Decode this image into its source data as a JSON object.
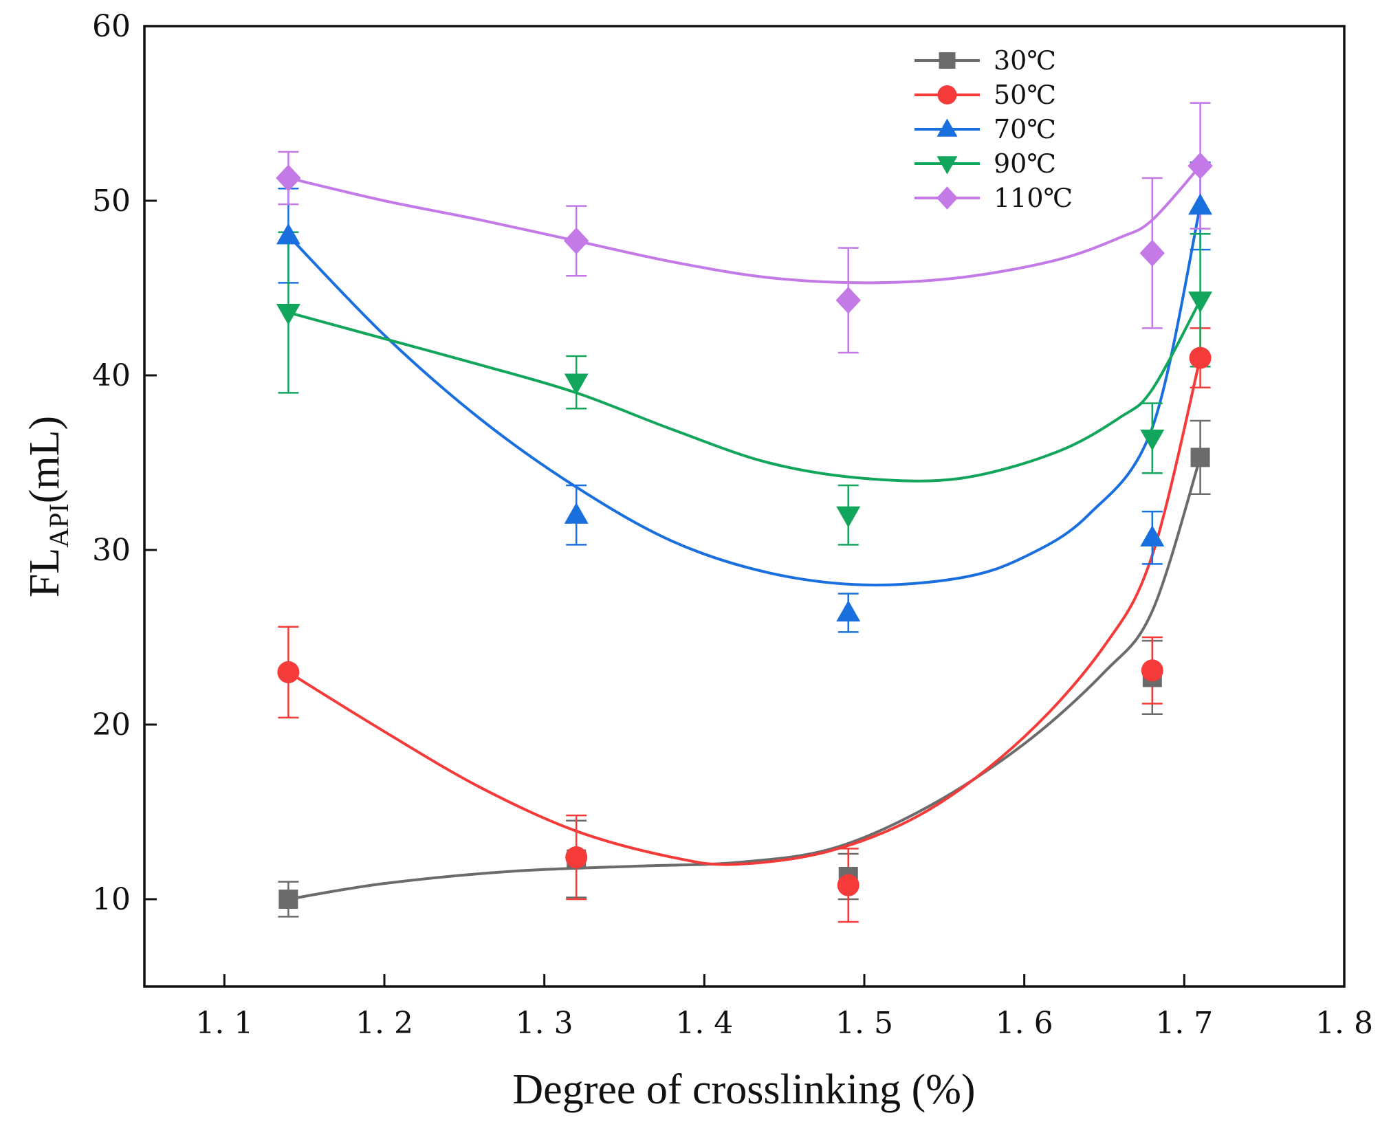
{
  "chart_data": {
    "type": "line",
    "xlabel": "Degree of crosslinking (%)",
    "ylabel_main": "FL",
    "ylabel_sub": "API",
    "ylabel_unit": "(mL)",
    "xlim": [
      1.05,
      1.8
    ],
    "ylim": [
      5,
      60
    ],
    "x_ticks": [
      1.1,
      1.2,
      1.3,
      1.4,
      1.5,
      1.6,
      1.7,
      1.8
    ],
    "x_tick_labels": [
      "1. 1",
      "1. 2",
      "1. 3",
      "1. 4",
      "1. 5",
      "1. 6",
      "1. 7",
      "1. 8"
    ],
    "y_ticks": [
      10,
      20,
      30,
      40,
      50,
      60
    ],
    "y_tick_labels": [
      "10",
      "20",
      "30",
      "40",
      "50",
      "60"
    ],
    "legend_position": "top-right",
    "grid": false,
    "x": [
      1.14,
      1.32,
      1.49,
      1.68,
      1.71
    ],
    "series": [
      {
        "name": "30℃",
        "color": "#6b6b6b",
        "marker": "square",
        "values": [
          10.0,
          12.3,
          11.3,
          22.7,
          35.3
        ],
        "errors": [
          1.0,
          2.2,
          1.3,
          2.1,
          2.1
        ],
        "fit_x": [
          1.14,
          1.2,
          1.28,
          1.36,
          1.42,
          1.48,
          1.54,
          1.6,
          1.65,
          1.68,
          1.71
        ],
        "fit_y": [
          10.0,
          10.9,
          11.6,
          11.9,
          12.1,
          12.9,
          15.3,
          18.9,
          23.0,
          26.5,
          35.3
        ]
      },
      {
        "name": "50℃",
        "color": "#f53a3a",
        "marker": "circle",
        "values": [
          23.0,
          12.4,
          10.8,
          23.1,
          41.0
        ],
        "errors": [
          2.6,
          2.4,
          2.1,
          1.9,
          1.7
        ],
        "fit_x": [
          1.14,
          1.2,
          1.26,
          1.32,
          1.38,
          1.42,
          1.48,
          1.54,
          1.6,
          1.65,
          1.68,
          1.71
        ],
        "fit_y": [
          23.0,
          19.6,
          16.4,
          13.9,
          12.4,
          12.0,
          12.8,
          15.1,
          19.3,
          24.5,
          29.7,
          41.0
        ]
      },
      {
        "name": "70℃",
        "color": "#1a6fdf",
        "marker": "triangle-up",
        "values": [
          48.0,
          32.0,
          26.4,
          30.7,
          49.7
        ],
        "errors": [
          2.7,
          1.7,
          1.1,
          1.5,
          2.5
        ],
        "fit_x": [
          1.14,
          1.2,
          1.26,
          1.32,
          1.38,
          1.44,
          1.5,
          1.56,
          1.6,
          1.64,
          1.68,
          1.71
        ],
        "fit_y": [
          48.0,
          42.3,
          37.5,
          33.6,
          30.5,
          28.7,
          28.0,
          28.4,
          29.6,
          32.0,
          37.0,
          49.7
        ]
      },
      {
        "name": "90℃",
        "color": "#12a55c",
        "marker": "triangle-down",
        "values": [
          43.6,
          39.6,
          32.0,
          36.4,
          44.3
        ],
        "errors": [
          4.6,
          1.5,
          1.7,
          2.0,
          3.8
        ],
        "fit_x": [
          1.14,
          1.2,
          1.26,
          1.32,
          1.38,
          1.44,
          1.5,
          1.56,
          1.62,
          1.66,
          1.68,
          1.71
        ],
        "fit_y": [
          43.6,
          42.1,
          40.6,
          39.0,
          36.9,
          35.0,
          34.1,
          34.1,
          35.6,
          37.6,
          39.2,
          44.3
        ]
      },
      {
        "name": "110℃",
        "color": "#c47ae6",
        "marker": "diamond",
        "values": [
          51.3,
          47.7,
          44.3,
          47.0,
          52.0
        ],
        "errors": [
          1.5,
          2.0,
          3.0,
          4.3,
          3.6
        ],
        "fit_x": [
          1.14,
          1.2,
          1.26,
          1.32,
          1.38,
          1.44,
          1.5,
          1.56,
          1.62,
          1.66,
          1.68,
          1.71
        ],
        "fit_y": [
          51.3,
          50.0,
          48.9,
          47.7,
          46.5,
          45.6,
          45.3,
          45.6,
          46.6,
          47.9,
          48.9,
          52.0
        ]
      }
    ]
  }
}
